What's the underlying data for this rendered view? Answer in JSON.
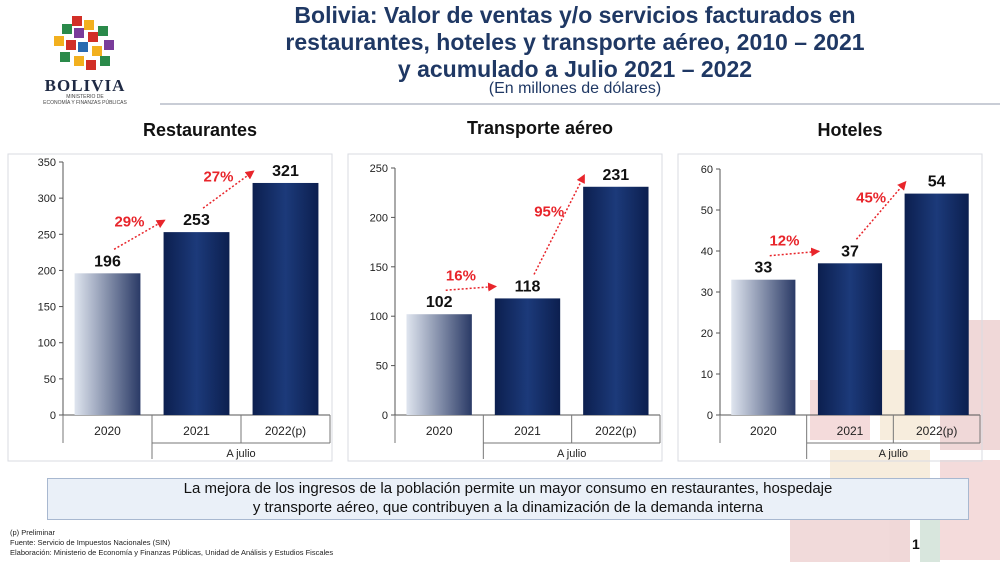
{
  "header": {
    "logo_word": "BOLIVIA",
    "logo_sub_1": "MINISTERIO DE",
    "logo_sub_2": "ECONOMÍA Y FINANZAS PÚBLICAS",
    "title_1": "Bolivia: Valor de ventas y/o servicios facturados en",
    "title_2": "restaurantes, hoteles y transporte aéreo, 2010 – 2021",
    "title_3": "y acumulado a Julio 2021 – 2022",
    "subtitle": "(En millones de dólares)"
  },
  "colors": {
    "title": "#1f3864",
    "bar_2020_light": "#dfe5ef",
    "bar_2020_dark": "#2a3a66",
    "bar_dark": "#0c1f4f",
    "growth_text": "#e8252b",
    "arrow": "#e8252b"
  },
  "chart_data": [
    {
      "type": "bar",
      "title": "Restaurantes",
      "categories": [
        "2020",
        "2021",
        "2022(p)"
      ],
      "values": [
        196,
        253,
        321
      ],
      "value_labels": [
        "196",
        "253",
        "321"
      ],
      "growth_labels": [
        "29%",
        "27%"
      ],
      "group_label": "A julio",
      "ylim": [
        0,
        350
      ],
      "yticks": [
        0,
        50,
        100,
        150,
        200,
        250,
        300,
        350
      ],
      "grid": false
    },
    {
      "type": "bar",
      "title": "Transporte aéreo",
      "categories": [
        "2020",
        "2021",
        "2022(p)"
      ],
      "values": [
        102,
        118,
        231
      ],
      "value_labels": [
        "102",
        "118",
        "231"
      ],
      "growth_labels": [
        "16%",
        "95%"
      ],
      "group_label": "A julio",
      "ylim": [
        0,
        250
      ],
      "yticks": [
        0,
        50,
        100,
        150,
        200,
        250
      ],
      "grid": false
    },
    {
      "type": "bar",
      "title": "Hoteles",
      "categories": [
        "2020",
        "2021",
        "2022(p)"
      ],
      "values": [
        33,
        37,
        54
      ],
      "value_labels": [
        "33",
        "37",
        "54"
      ],
      "growth_labels": [
        "12%",
        "45%"
      ],
      "group_label": "A julio",
      "ylim": [
        0,
        60
      ],
      "yticks": [
        0,
        10,
        20,
        30,
        40,
        50,
        60
      ],
      "grid": false
    }
  ],
  "message": {
    "line_1": "La mejora de los ingresos de la población permite un mayor consumo en restaurantes, hospedaje",
    "line_2": "y transporte aéreo, que contribuyen a la dinamización de la demanda interna"
  },
  "footnotes": {
    "note_1": "(p) Preliminar",
    "note_2": "Fuente: Servicio de Impuestos Nacionales (SIN)",
    "note_3": "Elaboración: Ministerio de Economía y Finanzas Públicas, Unidad de Análisis y Estudios Fiscales"
  },
  "page_number": "1"
}
